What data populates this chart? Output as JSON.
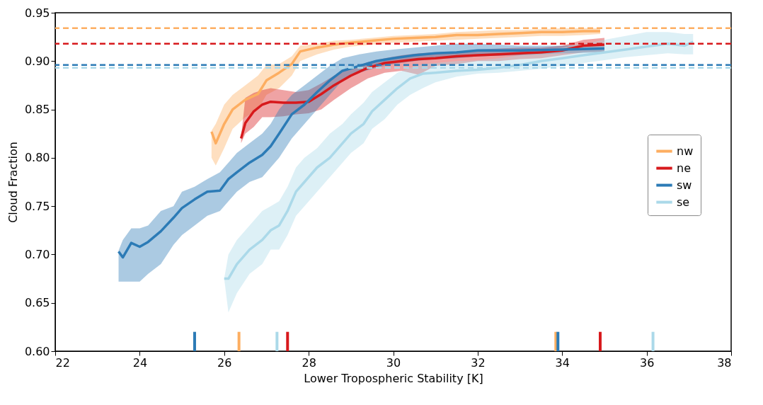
{
  "chart_data": {
    "type": "line",
    "xlabel": "Lower Tropospheric Stability [K]",
    "ylabel": "Cloud Fraction",
    "xlim": [
      22,
      38
    ],
    "xticks": [
      22,
      24,
      26,
      28,
      30,
      32,
      34,
      36,
      38
    ],
    "ylim": [
      0.6,
      0.95
    ],
    "yticks": [
      {
        "value": 0.6,
        "label": "0.60"
      },
      0.65,
      {
        "value": 0.7,
        "label": "0.70"
      },
      0.75,
      {
        "value": 0.8,
        "label": "0.80"
      },
      0.85,
      {
        "value": 0.9,
        "label": "0.90"
      },
      0.95
    ],
    "grid": false,
    "legend": "right",
    "line_style": "solid",
    "marker": "none",
    "series": [
      {
        "name": "nw",
        "color": "#fdae61",
        "x": [
          25.7,
          25.8,
          26.0,
          26.2,
          26.5,
          26.8,
          27.0,
          27.3,
          27.6,
          27.8,
          28.2,
          28.6,
          29.0,
          29.5,
          30.0,
          30.5,
          31.0,
          31.5,
          32.0,
          32.5,
          33.0,
          33.5,
          34.0,
          34.5,
          34.9
        ],
        "values": [
          0.827,
          0.815,
          0.835,
          0.85,
          0.86,
          0.866,
          0.88,
          0.888,
          0.897,
          0.91,
          0.914,
          0.917,
          0.919,
          0.921,
          0.923,
          0.924,
          0.925,
          0.927,
          0.927,
          0.928,
          0.929,
          0.93,
          0.93,
          0.931,
          0.931
        ],
        "lower": [
          0.8,
          0.792,
          0.81,
          0.83,
          0.842,
          0.85,
          0.865,
          0.872,
          0.885,
          0.9,
          0.907,
          0.912,
          0.915,
          0.917,
          0.919,
          0.92,
          0.921,
          0.922,
          0.923,
          0.924,
          0.925,
          0.926,
          0.926,
          0.927,
          0.928
        ],
        "upper": [
          0.828,
          0.835,
          0.855,
          0.865,
          0.875,
          0.885,
          0.896,
          0.897,
          0.905,
          0.916,
          0.918,
          0.921,
          0.922,
          0.924,
          0.926,
          0.927,
          0.928,
          0.93,
          0.931,
          0.932,
          0.932,
          0.933,
          0.934,
          0.934,
          0.934
        ]
      },
      {
        "name": "ne",
        "color": "#d7191c",
        "x": [
          26.4,
          26.5,
          26.7,
          26.9,
          27.1,
          27.4,
          27.7,
          28.0,
          28.3,
          28.6,
          29.0,
          29.4,
          29.8,
          30.2,
          30.6,
          31.0,
          31.5,
          32.0,
          32.5,
          33.0,
          33.5,
          34.0,
          34.5,
          35.0
        ],
        "values": [
          0.82,
          0.836,
          0.848,
          0.855,
          0.858,
          0.857,
          0.857,
          0.858,
          0.866,
          0.875,
          0.885,
          0.893,
          0.898,
          0.9,
          0.902,
          0.903,
          0.905,
          0.906,
          0.907,
          0.908,
          0.909,
          0.911,
          0.916,
          0.917
        ],
        "lower": [
          0.815,
          0.825,
          0.832,
          0.842,
          0.842,
          0.843,
          0.845,
          0.846,
          0.85,
          0.86,
          0.872,
          0.882,
          0.888,
          0.89,
          0.886,
          0.895,
          0.897,
          0.9,
          0.9,
          0.902,
          0.903,
          0.906,
          0.909,
          0.91
        ],
        "upper": [
          0.822,
          0.862,
          0.867,
          0.87,
          0.872,
          0.87,
          0.868,
          0.87,
          0.877,
          0.885,
          0.893,
          0.899,
          0.903,
          0.906,
          0.908,
          0.909,
          0.91,
          0.912,
          0.913,
          0.914,
          0.914,
          0.916,
          0.922,
          0.924
        ]
      },
      {
        "name": "sw",
        "color": "#2c7bb6",
        "x": [
          23.5,
          23.6,
          23.8,
          24.0,
          24.2,
          24.5,
          24.8,
          25.0,
          25.3,
          25.6,
          25.9,
          26.1,
          26.3,
          26.6,
          26.9,
          27.1,
          27.3,
          27.6,
          27.9,
          28.2,
          28.5,
          28.8,
          29.2,
          29.6,
          30.0,
          30.5,
          31.0,
          31.5,
          32.0,
          33.0,
          34.0,
          35.0
        ],
        "values": [
          0.703,
          0.697,
          0.712,
          0.708,
          0.713,
          0.724,
          0.738,
          0.748,
          0.757,
          0.765,
          0.766,
          0.778,
          0.785,
          0.795,
          0.803,
          0.812,
          0.825,
          0.845,
          0.855,
          0.868,
          0.88,
          0.89,
          0.895,
          0.9,
          0.903,
          0.906,
          0.908,
          0.909,
          0.911,
          0.911,
          0.912,
          0.913
        ],
        "lower": [
          0.672,
          0.672,
          0.672,
          0.672,
          0.68,
          0.69,
          0.71,
          0.72,
          0.73,
          0.74,
          0.745,
          0.755,
          0.765,
          0.775,
          0.78,
          0.79,
          0.8,
          0.82,
          0.835,
          0.85,
          0.865,
          0.88,
          0.888,
          0.893,
          0.897,
          0.9,
          0.902,
          0.903,
          0.905,
          0.906,
          0.908,
          0.909
        ],
        "upper": [
          0.704,
          0.715,
          0.727,
          0.727,
          0.73,
          0.745,
          0.75,
          0.765,
          0.77,
          0.778,
          0.785,
          0.795,
          0.805,
          0.815,
          0.825,
          0.835,
          0.85,
          0.865,
          0.875,
          0.885,
          0.895,
          0.903,
          0.907,
          0.91,
          0.912,
          0.914,
          0.916,
          0.918,
          0.918,
          0.916,
          0.916,
          0.917
        ]
      },
      {
        "type": "line",
        "color": "#2c7bb6",
        "x": [
          25.3,
          25.3
        ],
        "values": [
          0.6,
          0.62
        ]
      },
      {
        "type": "line",
        "color": "#fdae61",
        "x": [
          26.35,
          26.35
        ],
        "values": [
          0.6,
          0.62
        ]
      },
      {
        "type": "line",
        "color": "#abd9e9",
        "x": [
          27.25,
          27.25
        ],
        "values": [
          0.6,
          0.62
        ]
      },
      {
        "type": "line",
        "color": "#d7191c",
        "x": [
          27.5,
          27.5
        ],
        "values": [
          0.6,
          0.62
        ]
      },
      {
        "type": "line",
        "color": "#fdae61",
        "x": [
          33.85,
          33.85
        ],
        "values": [
          0.6,
          0.62
        ]
      },
      {
        "type": "line",
        "color": "#2c7bb6",
        "x": [
          33.9,
          33.9
        ],
        "values": [
          0.6,
          0.62
        ]
      },
      {
        "type": "line",
        "color": "#d7191c",
        "x": [
          34.9,
          34.9
        ],
        "values": [
          0.6,
          0.62
        ]
      },
      {
        "type": "line",
        "color": "#abd9e9",
        "x": [
          36.15,
          36.15
        ],
        "values": [
          0.6,
          0.62
        ]
      },
      {
        "name": "se",
        "color": "#abd9e9",
        "x": [
          26.0,
          26.1,
          26.3,
          26.6,
          26.9,
          27.1,
          27.3,
          27.5,
          27.7,
          27.9,
          28.2,
          28.5,
          28.8,
          29.0,
          29.3,
          29.5,
          29.8,
          30.1,
          30.4,
          30.7,
          31.0,
          31.5,
          32.0,
          32.5,
          33.0,
          33.5,
          34.0,
          34.5,
          35.0,
          35.5,
          36.0,
          36.5,
          36.9,
          37.1
        ],
        "values": [
          0.675,
          0.675,
          0.69,
          0.705,
          0.715,
          0.725,
          0.73,
          0.745,
          0.765,
          0.775,
          0.79,
          0.8,
          0.815,
          0.825,
          0.835,
          0.848,
          0.86,
          0.872,
          0.882,
          0.887,
          0.888,
          0.89,
          0.891,
          0.893,
          0.896,
          0.9,
          0.903,
          0.906,
          0.909,
          0.912,
          0.915,
          0.918,
          0.916,
          0.92
        ],
        "lower": [
          0.675,
          0.64,
          0.66,
          0.68,
          0.69,
          0.705,
          0.705,
          0.72,
          0.74,
          0.75,
          0.765,
          0.78,
          0.795,
          0.805,
          0.815,
          0.83,
          0.84,
          0.855,
          0.865,
          0.872,
          0.878,
          0.884,
          0.887,
          0.888,
          0.89,
          0.892,
          0.895,
          0.898,
          0.901,
          0.904,
          0.906,
          0.908,
          0.907,
          0.907
        ],
        "upper": [
          0.675,
          0.7,
          0.715,
          0.73,
          0.745,
          0.75,
          0.755,
          0.77,
          0.79,
          0.8,
          0.81,
          0.825,
          0.835,
          0.845,
          0.857,
          0.868,
          0.878,
          0.888,
          0.893,
          0.897,
          0.898,
          0.9,
          0.901,
          0.903,
          0.906,
          0.91,
          0.914,
          0.918,
          0.922,
          0.926,
          0.93,
          0.93,
          0.928,
          0.928
        ]
      }
    ],
    "ref_lines": [
      {
        "axis": "y",
        "value": 0.934,
        "color": "#fdae61",
        "line_style": "dashed"
      },
      {
        "axis": "y",
        "value": 0.918,
        "color": "#d7191c",
        "line_style": "dashed"
      },
      {
        "axis": "y",
        "value": 0.896,
        "color": "#2c7bb6",
        "line_style": "dashed"
      },
      {
        "axis": "y",
        "value": 0.893,
        "color": "#abd9e9",
        "line_style": "dashed"
      }
    ]
  }
}
